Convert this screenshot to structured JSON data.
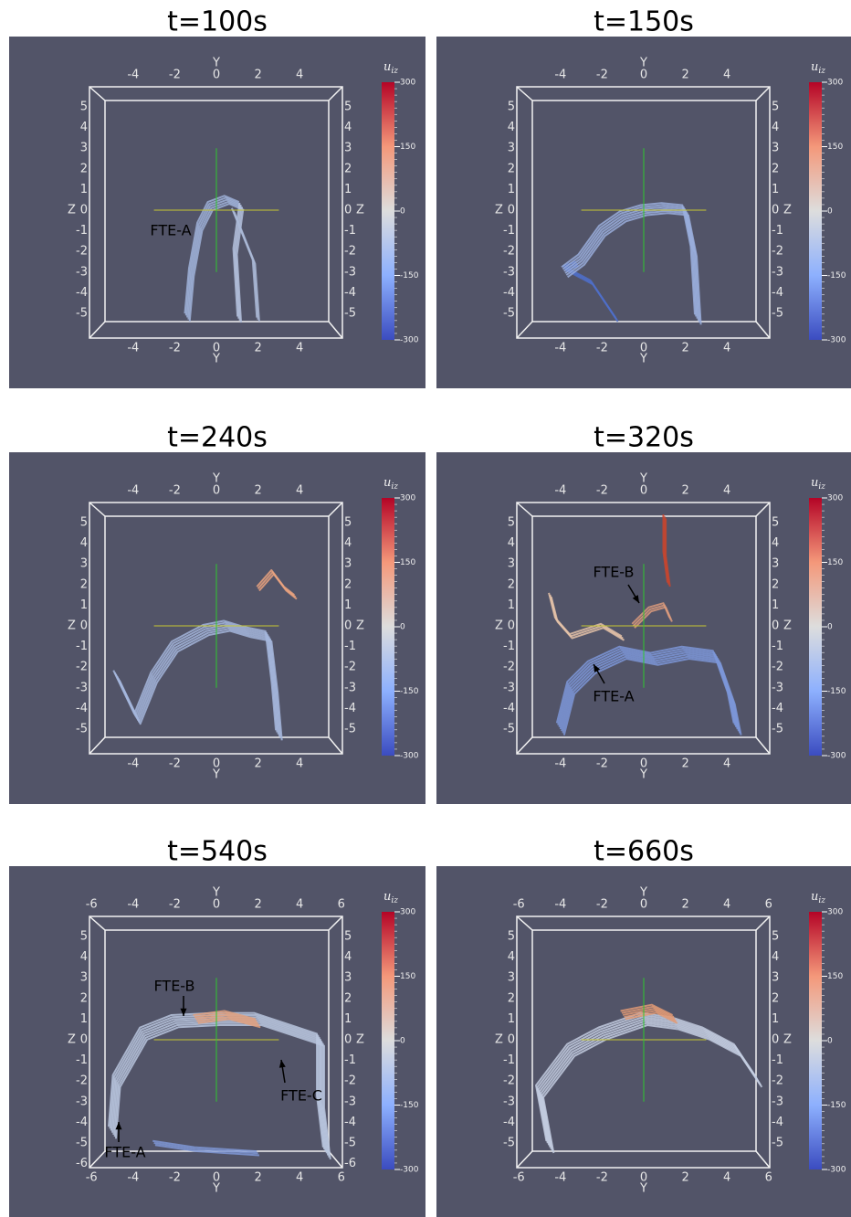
{
  "axis_labels": {
    "horizontal": "Y",
    "vertical": "Z"
  },
  "colorbar": {
    "symbol": "u",
    "subscript": "iz",
    "ticks": [
      300,
      150,
      0,
      -150,
      -300
    ]
  },
  "panels": [
    {
      "title": "t=100s",
      "y_ticks": [
        -4,
        -2,
        0,
        2,
        4
      ],
      "z_ticks": [
        5,
        4,
        3,
        2,
        1,
        0,
        -1,
        -2,
        -3,
        -4,
        -5
      ],
      "annotations": [
        "FTE-A"
      ]
    },
    {
      "title": "t=150s",
      "y_ticks": [
        -4,
        -2,
        0,
        2,
        4
      ],
      "z_ticks": [
        5,
        4,
        3,
        2,
        1,
        0,
        -1,
        -2,
        -3,
        -4,
        -5
      ]
    },
    {
      "title": "t=240s",
      "y_ticks": [
        -4,
        -2,
        0,
        2,
        4
      ],
      "z_ticks": [
        5,
        4,
        3,
        2,
        1,
        0,
        -1,
        -2,
        -3,
        -4,
        -5
      ]
    },
    {
      "title": "t=320s",
      "y_ticks": [
        -4,
        -2,
        0,
        2,
        4
      ],
      "z_ticks": [
        5,
        4,
        3,
        2,
        1,
        0,
        -1,
        -2,
        -3,
        -4,
        -5
      ],
      "annotations": [
        "FTE-B",
        "FTE-A"
      ]
    },
    {
      "title": "t=540s",
      "y_ticks": [
        -6,
        -4,
        -2,
        0,
        2,
        4,
        6
      ],
      "z_ticks": [
        5,
        4,
        3,
        2,
        1,
        0,
        -1,
        -2,
        -3,
        -4,
        -5,
        -6
      ],
      "annotations": [
        "FTE-B",
        "FTE-C",
        "FTE-A"
      ]
    },
    {
      "title": "t=660s",
      "y_ticks": [
        -6,
        -4,
        -2,
        0,
        2,
        4,
        6
      ],
      "z_ticks": [
        5,
        4,
        3,
        2,
        1,
        0,
        -1,
        -2,
        -3,
        -4,
        -5
      ]
    }
  ]
}
